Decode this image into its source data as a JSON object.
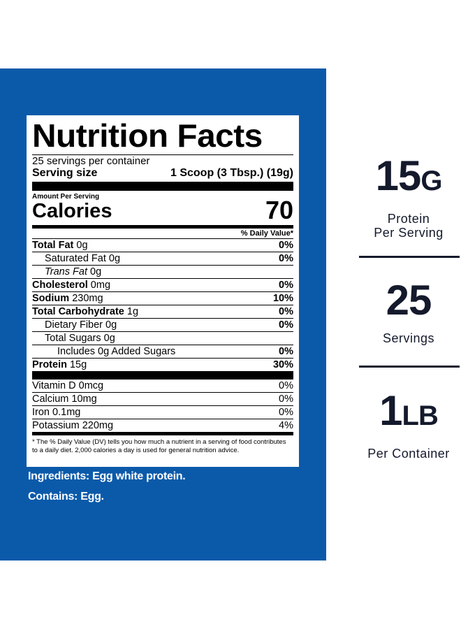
{
  "label": {
    "title": "Nutrition Facts",
    "servings_per_container": "25 servings per container",
    "serving_size_label": "Serving size",
    "serving_size_value": "1 Scoop (3 Tbsp.) (19g)",
    "amount_per_serving": "Amount Per Serving",
    "calories_label": "Calories",
    "calories_value": "70",
    "dv_header": "% Daily Value*",
    "nutrients": [
      {
        "name": "Total Fat",
        "amount": "0g",
        "dv": "0%"
      },
      {
        "name": "Saturated Fat",
        "amount": "0g",
        "dv": "0%"
      },
      {
        "name": "Trans Fat",
        "amount": "0g"
      },
      {
        "name": "Cholesterol",
        "amount": "0mg",
        "dv": "0%"
      },
      {
        "name": "Sodium",
        "amount": "230mg",
        "dv": "10%"
      },
      {
        "name": "Total Carbohydrate",
        "amount": "1g",
        "dv": "0%"
      },
      {
        "name": "Dietary Fiber",
        "amount": "0g",
        "dv": "0%"
      },
      {
        "name": "Total Sugars",
        "amount": "0g"
      },
      {
        "name": "Includes 0g Added Sugars",
        "dv": "0%"
      },
      {
        "name": "Protein",
        "amount": "15g",
        "dv": "30%"
      }
    ],
    "vitamins": [
      {
        "name": "Vitamin D",
        "amount": "0mcg",
        "dv": "0%"
      },
      {
        "name": "Calcium",
        "amount": "10mg",
        "dv": "0%"
      },
      {
        "name": "Iron",
        "amount": "0.1mg",
        "dv": "0%"
      },
      {
        "name": "Potassium",
        "amount": "220mg",
        "dv": "4%"
      }
    ],
    "footnote": "* The % Daily Value (DV) tells you how much a nutrient in a serving of food contributes to a daily diet. 2,000 calories a day is used for general nutrition advice."
  },
  "ingredients": "Ingredients: Egg white protein.",
  "contains": "Contains: Egg.",
  "stats": [
    {
      "value": "15",
      "unit": "G",
      "label": [
        "Protein",
        "Per Serving"
      ]
    },
    {
      "value": "25",
      "label": [
        "Servings"
      ]
    },
    {
      "value": "1",
      "unit": "LB",
      "label": [
        "Per Container"
      ]
    }
  ]
}
